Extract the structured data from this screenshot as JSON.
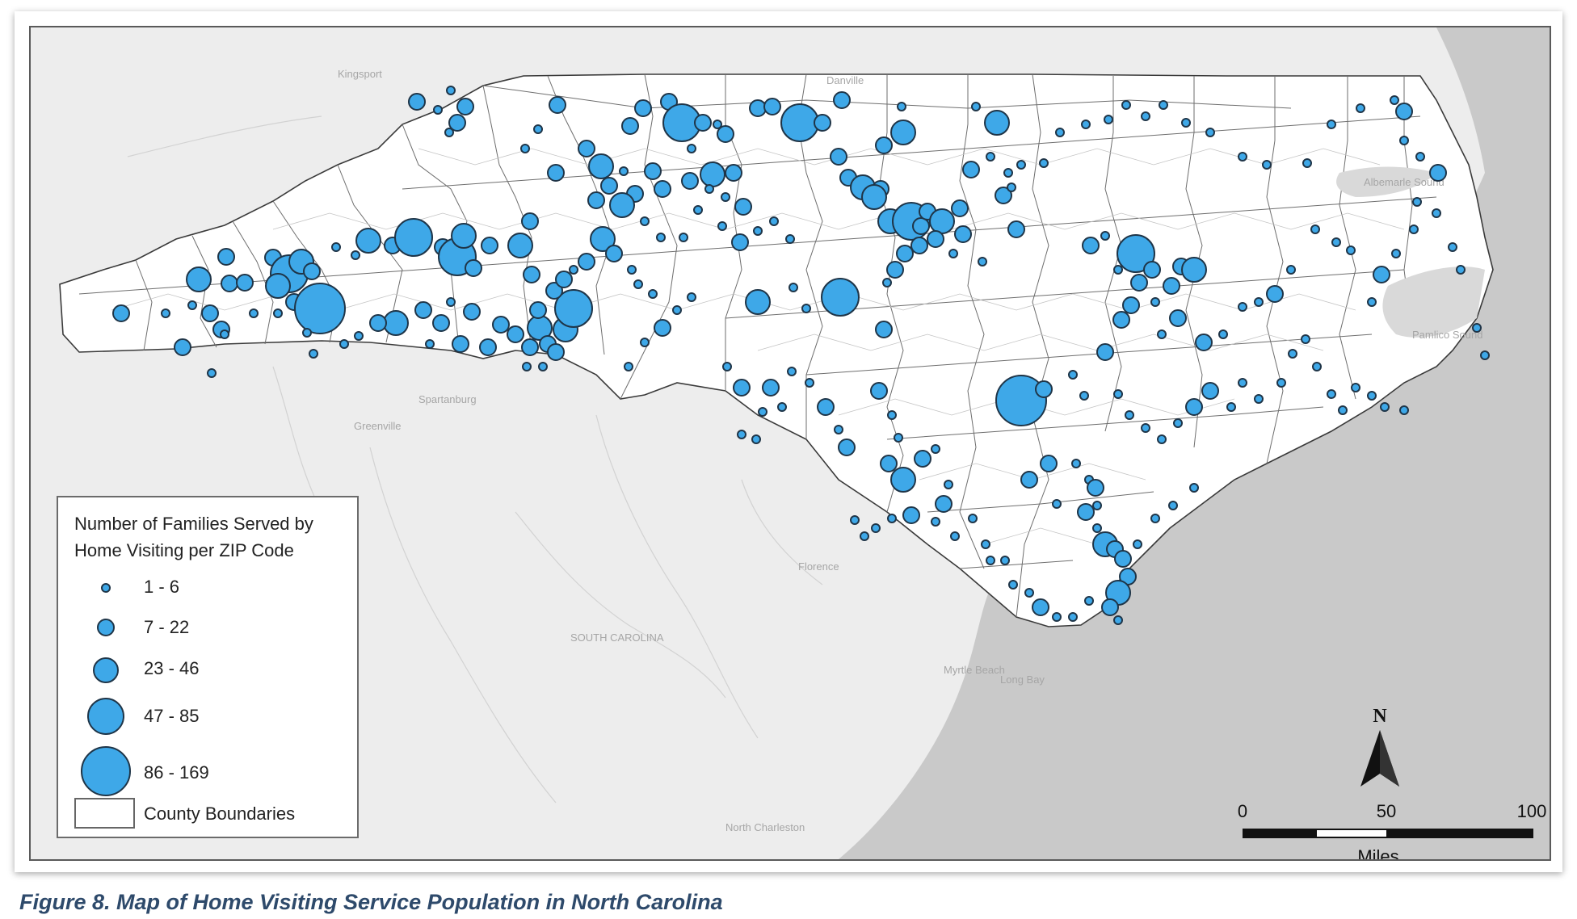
{
  "caption": "Figure 8.  Map of Home Visiting Service Population in North Carolina",
  "legend": {
    "title": "Number of Families Served by Home Visiting per ZIP Code",
    "classes": [
      {
        "label": "1 - 6"
      },
      {
        "label": "7 - 22"
      },
      {
        "label": "23 - 46"
      },
      {
        "label": "47 - 85"
      },
      {
        "label": "86 - 169"
      }
    ],
    "county_label": "County Boundaries"
  },
  "north_arrow": {
    "letter": "N"
  },
  "scale_bar": {
    "ticks": [
      "0",
      "50",
      "100"
    ],
    "units": "Miles"
  },
  "basemap_labels": {
    "danville": "Danville",
    "florence": "Florence",
    "sc": "SOUTH CAROLINA",
    "spartanburg": "Spartanburg",
    "greenville": "Greenville",
    "myrtle": "Myrtle Beach",
    "long_bay": "Long Bay",
    "pamlico": "Pamlico Sound",
    "charleston": "North Charleston",
    "kingsport": "Kingsport",
    "albemarle": "Albemarle Sound"
  },
  "colors": {
    "bubble_fill": "#3ea8e8",
    "bubble_stroke": "#1f3548",
    "land": "#ffffff",
    "background": "#ededed",
    "ocean": "#c9c9c9",
    "caption": "#2e4a6b"
  }
}
